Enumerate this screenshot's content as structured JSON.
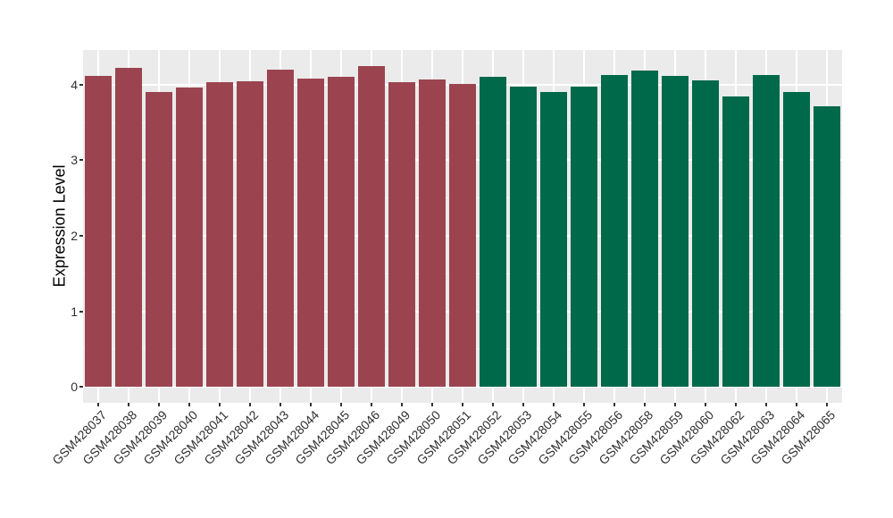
{
  "chart_data": {
    "type": "bar",
    "title": "",
    "xlabel": "",
    "ylabel": "Expression Level",
    "categories": [
      "GSM428037",
      "GSM428038",
      "GSM428039",
      "GSM428040",
      "GSM428041",
      "GSM428042",
      "GSM428043",
      "GSM428044",
      "GSM428045",
      "GSM428046",
      "GSM428049",
      "GSM428050",
      "GSM428051",
      "GSM428052",
      "GSM428053",
      "GSM428054",
      "GSM428055",
      "GSM428056",
      "GSM428058",
      "GSM428059",
      "GSM428060",
      "GSM428062",
      "GSM428063",
      "GSM428064",
      "GSM428065"
    ],
    "values": [
      4.12,
      4.22,
      3.91,
      3.96,
      4.03,
      4.05,
      4.2,
      4.08,
      4.1,
      4.25,
      4.03,
      4.07,
      4.01,
      4.1,
      3.98,
      3.91,
      3.98,
      4.13,
      4.19,
      4.12,
      4.06,
      3.84,
      4.13,
      3.91,
      3.72
    ],
    "color_groups": [
      {
        "color": "#9B4450",
        "count": 13
      },
      {
        "color": "#00694A",
        "count": 12
      }
    ],
    "yticks": [
      0,
      1,
      2,
      3,
      4
    ],
    "yticks_minor": [
      0.5,
      1.5,
      2.5,
      3.5
    ],
    "ylim": [
      -0.21,
      4.46
    ],
    "bar_width_fraction": 0.9,
    "grid": "on",
    "legend": "none",
    "panel_bg": "#EBEBEB",
    "grid_major_color": "#FFFFFF",
    "grid_minor_color": "rgba(255,255,255,0.55)",
    "axis_text_color": "#303030",
    "axis_title_color": "#000000",
    "tick_color": "#333333"
  }
}
